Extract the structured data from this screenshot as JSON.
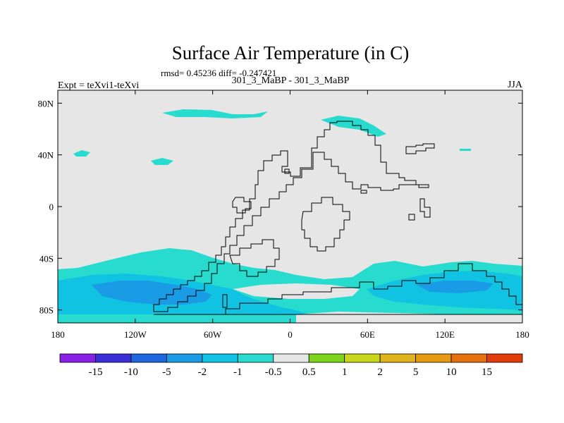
{
  "title": "Surface Air Temperature (in C)",
  "stats": "rmsd= 0.45236 diff= -0.247421",
  "subtitle_left": "Expt = teXvi1-teXvi",
  "subtitle_center": "301_3_MaBP - 301_3_MaBP",
  "subtitle_right": "JJA",
  "lat_ticks": [
    {
      "value": 80,
      "label": "80N"
    },
    {
      "value": 40,
      "label": "40N"
    },
    {
      "value": 0,
      "label": "0"
    },
    {
      "value": -40,
      "label": "40S"
    },
    {
      "value": -80,
      "label": "80S"
    }
  ],
  "lon_ticks": [
    {
      "value": -180,
      "label": "180"
    },
    {
      "value": -120,
      "label": "120W"
    },
    {
      "value": -60,
      "label": "60W"
    },
    {
      "value": 0,
      "label": "0"
    },
    {
      "value": 60,
      "label": "60E"
    },
    {
      "value": 120,
      "label": "120E"
    },
    {
      "value": 180,
      "label": "180"
    }
  ],
  "colorbar": {
    "colors": [
      "#8a1fe6",
      "#3a2fd6",
      "#1e66dd",
      "#1a9be6",
      "#10c3e3",
      "#27dccf",
      "#e6e6e6",
      "#7ed31c",
      "#c9d81c",
      "#e0b41c",
      "#e59a12",
      "#e5700c",
      "#e23b0a"
    ],
    "labels": [
      "-15",
      "-10",
      "-5",
      "-2",
      "-1",
      "-0.5",
      "0.5",
      "1",
      "2",
      "5",
      "10",
      "15"
    ]
  },
  "field_colors": {
    "neutral": "#e6e6e6",
    "c_minus_05": "#27dccf",
    "c_minus_1": "#10c3e3",
    "c_minus_2": "#1a9be6"
  }
}
